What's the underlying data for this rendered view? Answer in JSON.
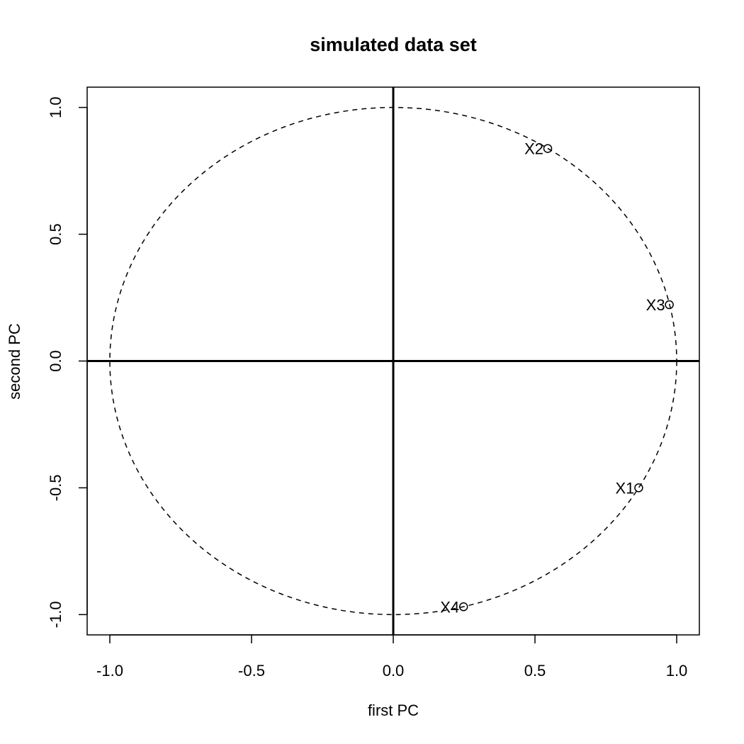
{
  "chart_data": {
    "type": "scatter",
    "title": "simulated data set",
    "xlabel": "first PC",
    "ylabel": "second PC",
    "xlim": [
      -1.08,
      1.08
    ],
    "ylim": [
      -1.08,
      1.08
    ],
    "x_ticks": [
      -1.0,
      -0.5,
      0.0,
      0.5,
      1.0
    ],
    "x_tick_labels": [
      "-1.0",
      "-0.5",
      "0.0",
      "0.5",
      "1.0"
    ],
    "y_ticks": [
      -1.0,
      -0.5,
      0.0,
      0.5,
      1.0
    ],
    "y_tick_labels": [
      "-1.0",
      "-0.5",
      "0.0",
      "0.5",
      "1.0"
    ],
    "unit_circle": true,
    "reference_lines": {
      "x": 0,
      "y": 0
    },
    "grid": false,
    "points": [
      {
        "label": "X1",
        "x": 0.866,
        "y": -0.5
      },
      {
        "label": "X2",
        "x": 0.545,
        "y": 0.838
      },
      {
        "label": "X3",
        "x": 0.974,
        "y": 0.222
      },
      {
        "label": "X4",
        "x": 0.248,
        "y": -0.969
      }
    ]
  }
}
